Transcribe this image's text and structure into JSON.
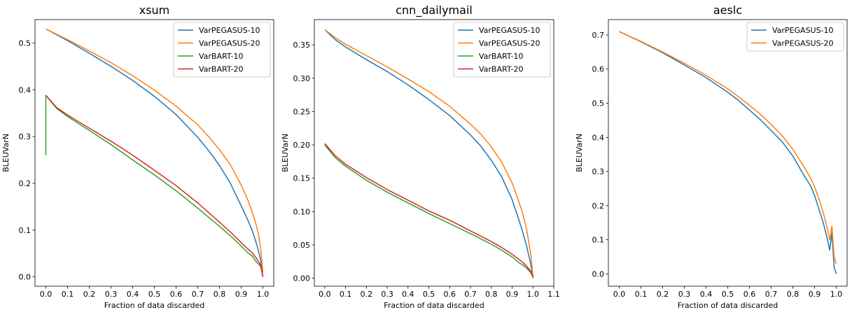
{
  "chart_data": [
    {
      "type": "line",
      "title": "xsum",
      "xlabel": "Fraction of data discarded",
      "ylabel": "BLEUVarN",
      "xlim": [
        -0.05,
        1.05
      ],
      "ylim": [
        -0.02,
        0.55
      ],
      "xticks": [
        "0.0",
        "0.1",
        "0.2",
        "0.3",
        "0.4",
        "0.5",
        "0.6",
        "0.7",
        "0.8",
        "0.9",
        "1.0"
      ],
      "xtick_values": [
        0,
        0.1,
        0.2,
        0.3,
        0.4,
        0.5,
        0.6,
        0.7,
        0.8,
        0.9,
        1.0
      ],
      "yticks": [
        "0.0",
        "0.1",
        "0.2",
        "0.3",
        "0.4",
        "0.5"
      ],
      "ytick_values": [
        0,
        0.1,
        0.2,
        0.3,
        0.4,
        0.5
      ],
      "legend": "top-right",
      "series": [
        {
          "name": "VarPEGASUS-10",
          "color": "#1f77b4",
          "x": [
            0,
            0.1,
            0.2,
            0.3,
            0.4,
            0.5,
            0.6,
            0.7,
            0.75,
            0.8,
            0.85,
            0.9,
            0.93,
            0.95,
            0.97,
            0.98,
            0.99,
            1.0
          ],
          "y": [
            0.53,
            0.505,
            0.478,
            0.45,
            0.42,
            0.386,
            0.347,
            0.298,
            0.27,
            0.238,
            0.2,
            0.152,
            0.122,
            0.1,
            0.072,
            0.055,
            0.035,
            0.0
          ]
        },
        {
          "name": "VarPEGASUS-20",
          "color": "#ff7f0e",
          "x": [
            0,
            0.1,
            0.2,
            0.3,
            0.4,
            0.5,
            0.6,
            0.7,
            0.75,
            0.8,
            0.85,
            0.9,
            0.93,
            0.95,
            0.97,
            0.98,
            0.99,
            1.0
          ],
          "y": [
            0.53,
            0.507,
            0.483,
            0.458,
            0.43,
            0.399,
            0.365,
            0.325,
            0.3,
            0.272,
            0.24,
            0.196,
            0.165,
            0.14,
            0.11,
            0.09,
            0.06,
            0.01
          ]
        },
        {
          "name": "VarBART-10",
          "color": "#2ca02c",
          "x": [
            0,
            0.0,
            0.05,
            0.1,
            0.2,
            0.3,
            0.4,
            0.5,
            0.6,
            0.7,
            0.8,
            0.85,
            0.9,
            0.93,
            0.95,
            0.97,
            0.99,
            1.0
          ],
          "y": [
            0.26,
            0.388,
            0.36,
            0.343,
            0.313,
            0.283,
            0.25,
            0.218,
            0.184,
            0.147,
            0.108,
            0.088,
            0.066,
            0.052,
            0.045,
            0.032,
            0.022,
            0.0
          ]
        },
        {
          "name": "VarBART-20",
          "color": "#d62728",
          "x": [
            0,
            0.05,
            0.1,
            0.2,
            0.3,
            0.4,
            0.5,
            0.6,
            0.7,
            0.8,
            0.85,
            0.9,
            0.93,
            0.95,
            0.97,
            0.99,
            1.0
          ],
          "y": [
            0.388,
            0.362,
            0.346,
            0.318,
            0.29,
            0.26,
            0.228,
            0.195,
            0.158,
            0.117,
            0.096,
            0.073,
            0.06,
            0.052,
            0.04,
            0.025,
            0.0
          ]
        }
      ]
    },
    {
      "type": "line",
      "title": "cnn_dailymail",
      "xlabel": "Fraction of data discarded",
      "ylabel": "BLEUVarN",
      "xlim": [
        -0.05,
        1.1
      ],
      "ylim": [
        -0.012,
        0.388
      ],
      "xticks": [
        "0.0",
        "0.1",
        "0.2",
        "0.3",
        "0.4",
        "0.5",
        "0.6",
        "0.7",
        "0.8",
        "0.9",
        "1.0",
        "1.1"
      ],
      "xtick_values": [
        0,
        0.1,
        0.2,
        0.3,
        0.4,
        0.5,
        0.6,
        0.7,
        0.8,
        0.9,
        1.0,
        1.1
      ],
      "yticks": [
        "0.00",
        "0.05",
        "0.10",
        "0.15",
        "0.20",
        "0.25",
        "0.30",
        "0.35"
      ],
      "ytick_values": [
        0,
        0.05,
        0.1,
        0.15,
        0.2,
        0.25,
        0.3,
        0.35
      ],
      "legend": "top-right",
      "series": [
        {
          "name": "VarPEGASUS-10",
          "color": "#1f77b4",
          "x": [
            0,
            0.05,
            0.1,
            0.2,
            0.3,
            0.4,
            0.5,
            0.6,
            0.7,
            0.75,
            0.8,
            0.85,
            0.9,
            0.93,
            0.95,
            0.97,
            0.99,
            1.0
          ],
          "y": [
            0.373,
            0.358,
            0.347,
            0.328,
            0.31,
            0.29,
            0.268,
            0.244,
            0.215,
            0.198,
            0.177,
            0.152,
            0.118,
            0.09,
            0.07,
            0.048,
            0.02,
            0.0
          ]
        },
        {
          "name": "VarPEGASUS-20",
          "color": "#ff7f0e",
          "x": [
            0,
            0.05,
            0.1,
            0.2,
            0.3,
            0.4,
            0.5,
            0.6,
            0.7,
            0.75,
            0.8,
            0.85,
            0.9,
            0.93,
            0.95,
            0.97,
            0.99,
            1.0
          ],
          "y": [
            0.373,
            0.361,
            0.351,
            0.334,
            0.317,
            0.299,
            0.28,
            0.258,
            0.231,
            0.216,
            0.197,
            0.174,
            0.143,
            0.117,
            0.098,
            0.073,
            0.035,
            0.002
          ]
        },
        {
          "name": "VarBART-10",
          "color": "#2ca02c",
          "x": [
            0,
            0.05,
            0.1,
            0.2,
            0.3,
            0.4,
            0.5,
            0.6,
            0.7,
            0.8,
            0.85,
            0.9,
            0.93,
            0.95,
            0.97,
            0.99,
            1.0
          ],
          "y": [
            0.2,
            0.181,
            0.168,
            0.147,
            0.129,
            0.113,
            0.097,
            0.082,
            0.067,
            0.051,
            0.042,
            0.032,
            0.024,
            0.02,
            0.015,
            0.008,
            0.002
          ]
        },
        {
          "name": "VarBART-20",
          "color": "#d62728",
          "x": [
            0,
            0.05,
            0.1,
            0.2,
            0.3,
            0.4,
            0.5,
            0.6,
            0.7,
            0.8,
            0.85,
            0.9,
            0.93,
            0.95,
            0.97,
            0.99,
            1.0
          ],
          "y": [
            0.202,
            0.184,
            0.171,
            0.151,
            0.133,
            0.117,
            0.101,
            0.087,
            0.071,
            0.055,
            0.046,
            0.036,
            0.029,
            0.024,
            0.018,
            0.01,
            0.002
          ]
        }
      ]
    },
    {
      "type": "line",
      "title": "aeslc",
      "xlabel": "Fraction of data discarded",
      "ylabel": "BLEUVarN",
      "xlim": [
        -0.05,
        1.05
      ],
      "ylim": [
        -0.036,
        0.745
      ],
      "xticks": [
        "0.0",
        "0.1",
        "0.2",
        "0.3",
        "0.4",
        "0.5",
        "0.6",
        "0.7",
        "0.8",
        "0.9",
        "1.0"
      ],
      "xtick_values": [
        0,
        0.1,
        0.2,
        0.3,
        0.4,
        0.5,
        0.6,
        0.7,
        0.8,
        0.9,
        1.0
      ],
      "yticks": [
        "0.0",
        "0.1",
        "0.2",
        "0.3",
        "0.4",
        "0.5",
        "0.6",
        "0.7"
      ],
      "ytick_values": [
        0,
        0.1,
        0.2,
        0.3,
        0.4,
        0.5,
        0.6,
        0.7
      ],
      "legend": "top-right",
      "series": [
        {
          "name": "VarPEGASUS-10",
          "color": "#1f77b4",
          "x": [
            0,
            0.1,
            0.2,
            0.3,
            0.4,
            0.5,
            0.55,
            0.6,
            0.65,
            0.7,
            0.75,
            0.8,
            0.85,
            0.88,
            0.9,
            0.92,
            0.94,
            0.96,
            0.97,
            0.98,
            0.99,
            1.0
          ],
          "y": [
            0.71,
            0.68,
            0.648,
            0.612,
            0.575,
            0.532,
            0.508,
            0.48,
            0.452,
            0.42,
            0.388,
            0.345,
            0.29,
            0.26,
            0.23,
            0.19,
            0.15,
            0.1,
            0.07,
            0.12,
            0.02,
            0.0
          ]
        },
        {
          "name": "VarPEGASUS-20",
          "color": "#ff7f0e",
          "x": [
            0,
            0.1,
            0.2,
            0.3,
            0.4,
            0.5,
            0.55,
            0.6,
            0.65,
            0.7,
            0.75,
            0.8,
            0.85,
            0.88,
            0.9,
            0.92,
            0.94,
            0.96,
            0.97,
            0.98,
            0.99,
            1.0
          ],
          "y": [
            0.71,
            0.681,
            0.65,
            0.617,
            0.582,
            0.542,
            0.519,
            0.494,
            0.468,
            0.438,
            0.405,
            0.365,
            0.315,
            0.283,
            0.255,
            0.22,
            0.18,
            0.13,
            0.1,
            0.14,
            0.05,
            0.03
          ]
        }
      ]
    }
  ]
}
